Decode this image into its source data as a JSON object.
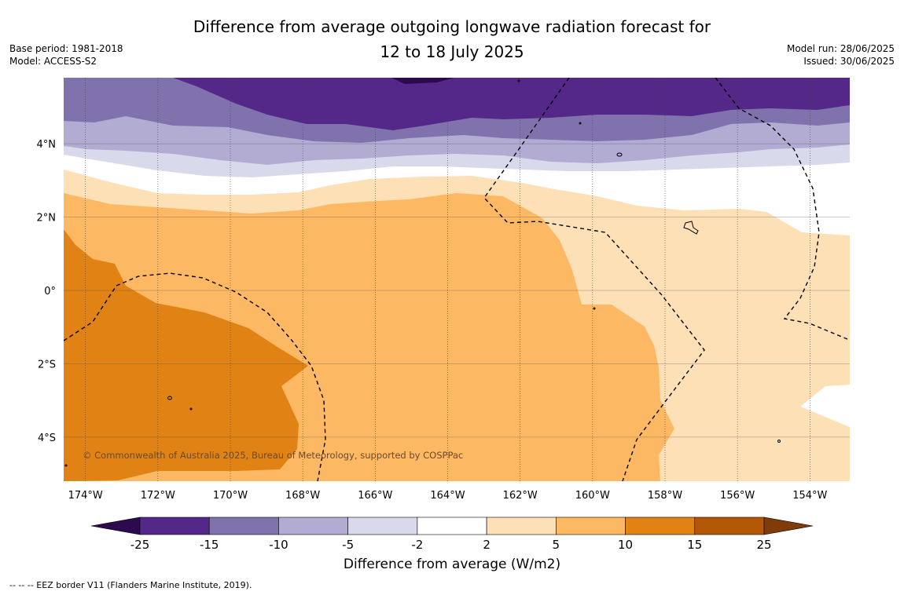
{
  "title": {
    "line1": "Difference from average outgoing longwave radiation forecast for",
    "line2": "12 to 18 July 2025"
  },
  "meta_left": {
    "base_period": "Base period: 1981-2018",
    "model": "Model: ACCESS-S2"
  },
  "meta_right": {
    "model_run": "Model run: 28/06/2025",
    "issued": "Issued: 30/06/2025"
  },
  "map": {
    "lon_range": [
      -174.6,
      -152.9
    ],
    "lat_range": [
      -5.2,
      5.8
    ],
    "lon_ticks": [
      {
        "value": -174,
        "label": "174°W"
      },
      {
        "value": -172,
        "label": "172°W"
      },
      {
        "value": -170,
        "label": "170°W"
      },
      {
        "value": -168,
        "label": "168°W"
      },
      {
        "value": -166,
        "label": "166°W"
      },
      {
        "value": -164,
        "label": "164°W"
      },
      {
        "value": -162,
        "label": "162°W"
      },
      {
        "value": -160,
        "label": "160°W"
      },
      {
        "value": -158,
        "label": "158°W"
      },
      {
        "value": -156,
        "label": "156°W"
      },
      {
        "value": -154,
        "label": "154°W"
      }
    ],
    "lat_ticks": [
      {
        "value": 4,
        "label": "4°N"
      },
      {
        "value": 2,
        "label": "2°N"
      },
      {
        "value": 0,
        "label": "0°"
      },
      {
        "value": -2,
        "label": "2°S"
      },
      {
        "value": -4,
        "label": "4°S"
      }
    ],
    "copyright": "© Commonwealth of Australia 2025, Bureau of Meteorology, supported by COSPPac"
  },
  "colorbar": {
    "label": "Difference from average (W/m2)",
    "ticks": [
      "-25",
      "-15",
      "-10",
      "-5",
      "-2",
      "2",
      "5",
      "10",
      "15",
      "25"
    ],
    "colors": [
      "#2d0a4e",
      "#532888",
      "#8073ad",
      "#b2abd2",
      "#d8daeb",
      "#ffffff",
      "#fee0b6",
      "#fdb863",
      "#e08214",
      "#b35806",
      "#7f3b08"
    ]
  },
  "footnote": "--  --  -- EEZ border V11 (Flanders Marine Institute, 2019)."
}
